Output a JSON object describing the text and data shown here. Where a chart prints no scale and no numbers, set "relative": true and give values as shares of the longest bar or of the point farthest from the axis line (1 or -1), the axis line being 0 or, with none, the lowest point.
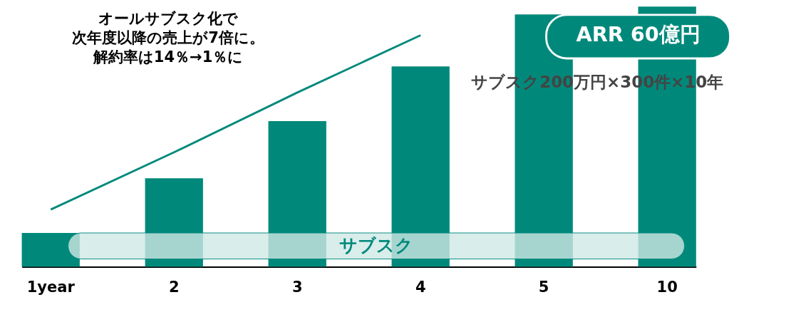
{
  "chart_data": {
    "type": "bar",
    "relative": true,
    "categories": [
      "1year",
      "2",
      "3",
      "4",
      "5",
      "10"
    ],
    "series": [
      {
        "color": "#00897b",
        "values": [
          0.13,
          0.34,
          0.56,
          0.77,
          0.97,
          1
        ]
      },
      {
        "type": "line",
        "color": "#00897b",
        "values": [
          0.22,
          0.44,
          0.67,
          0.89,
          null,
          null
        ]
      }
    ],
    "bands": [
      {
        "axis": "y",
        "from": 0.03,
        "to": 0.13,
        "label": "サブスク",
        "color": "#cfe9e6"
      }
    ],
    "annotations": [
      "ARR 60億円",
      "サブスク200万円×300件×10年",
      "オールサブスク化で",
      "次年度以降の売上が7倍に。",
      "解約率は14％→1％に"
    ],
    "tick_labels": "x",
    "grid": false
  }
}
